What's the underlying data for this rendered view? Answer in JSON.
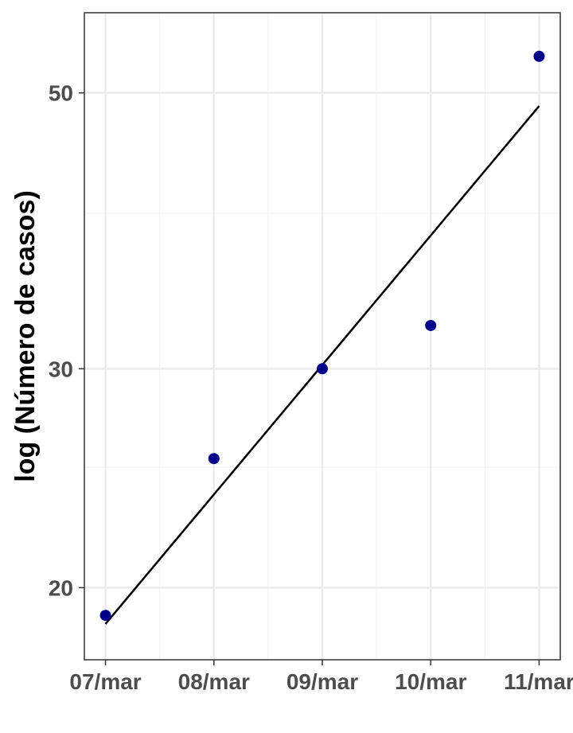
{
  "chart_data": {
    "type": "scatter",
    "title": "",
    "xlabel": "",
    "ylabel": "log (Número de casos)",
    "y_scale": "log",
    "grid": true,
    "legend": "none",
    "x_ticks": [
      "07/mar",
      "08/mar",
      "09/mar",
      "10/mar",
      "11/mar"
    ],
    "y_ticks": [
      20,
      30,
      50
    ],
    "y_minor_ticks": [
      25,
      40
    ],
    "xlim": [
      "06/mar 19:00",
      "11/mar 05:00"
    ],
    "ylim": [
      17.5,
      58
    ],
    "series": [
      {
        "kind": "points",
        "x": [
          "07/mar",
          "08/mar",
          "09/mar",
          "10/mar",
          "11/mar"
        ],
        "y": [
          19,
          25.4,
          30,
          32.5,
          53.5
        ]
      },
      {
        "kind": "fit-line",
        "x": [
          "07/mar",
          "11/mar"
        ],
        "y": [
          18.7,
          48.8
        ]
      }
    ],
    "colors": {
      "point": "#00008b",
      "line": "#000000",
      "grid_major": "#ebebeb",
      "grid_minor": "#f3f3f3",
      "panel_border": "#333333"
    }
  }
}
